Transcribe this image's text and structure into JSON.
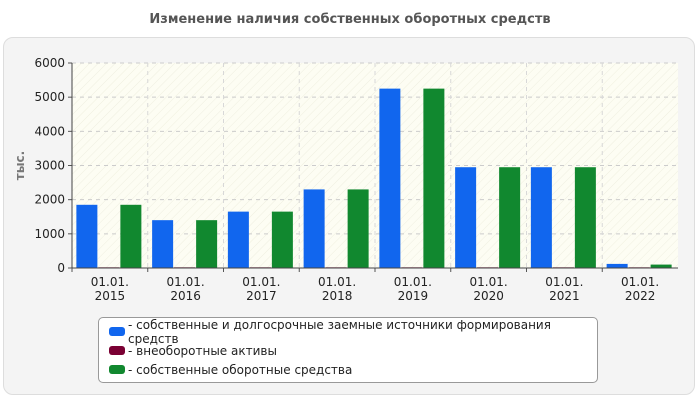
{
  "chart_data": {
    "type": "bar",
    "title": "Изменение наличия собственных оборотных средств",
    "xlabel": "",
    "ylabel": "тыс.",
    "ylim": [
      0,
      6000
    ],
    "yticks": [
      0,
      1000,
      2000,
      3000,
      4000,
      5000,
      6000
    ],
    "grid": true,
    "legend_position": "bottom",
    "categories": [
      [
        "01.01.",
        "2015"
      ],
      [
        "01.01.",
        "2016"
      ],
      [
        "01.01.",
        "2017"
      ],
      [
        "01.01.",
        "2018"
      ],
      [
        "01.01.",
        "2019"
      ],
      [
        "01.01.",
        "2020"
      ],
      [
        "01.01.",
        "2021"
      ],
      [
        "01.01.",
        "2022"
      ]
    ],
    "series": [
      {
        "name": "- собственные и долгосрочные заемные источники формирования средств",
        "color": "#1166ee",
        "values": [
          1850,
          1400,
          1650,
          2300,
          5250,
          2950,
          2950,
          120
        ]
      },
      {
        "name": "- внеоборотные активы",
        "color": "#7a0033",
        "values": [
          20,
          20,
          20,
          20,
          20,
          20,
          20,
          20
        ]
      },
      {
        "name": "- собственные оборотные средства",
        "color": "#11882f",
        "values": [
          1850,
          1400,
          1650,
          2300,
          5250,
          2950,
          2950,
          100
        ]
      }
    ]
  }
}
